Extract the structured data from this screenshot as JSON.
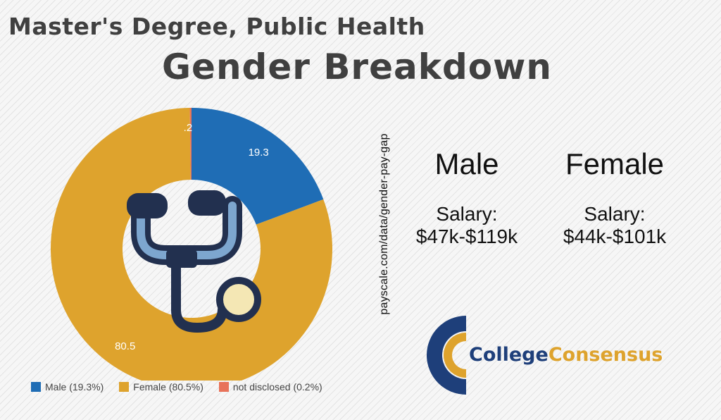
{
  "header": {
    "title": "Master's Degree, Public Health",
    "subtitle": "Gender Breakdown"
  },
  "chart_data": {
    "type": "pie",
    "donut": true,
    "categories": [
      "Male",
      "Female",
      "not disclosed"
    ],
    "values": [
      19.3,
      80.5,
      0.2
    ],
    "data_labels": [
      "19.3",
      "80.5",
      ".2"
    ],
    "legend": [
      "Male (19.3%)",
      "Female (80.5%)",
      "not disclosed (0.2%)"
    ],
    "legend_position": "bottom-left",
    "colors": [
      "#1f6db5",
      "#dea32d",
      "#e8735a"
    ]
  },
  "center_icon": "stethoscope-icon",
  "source": "payscale.com/data/gender-pay-gap",
  "salary": {
    "male": {
      "heading": "Male",
      "label": "Salary:",
      "range": "$47k-$119k"
    },
    "female": {
      "heading": "Female",
      "label": "Salary:",
      "range": "$44k-$101k"
    }
  },
  "logo": {
    "part1": "College",
    "part2": "Consensus",
    "colors": {
      "navy": "#1e3f7a",
      "gold": "#dea32d"
    }
  }
}
